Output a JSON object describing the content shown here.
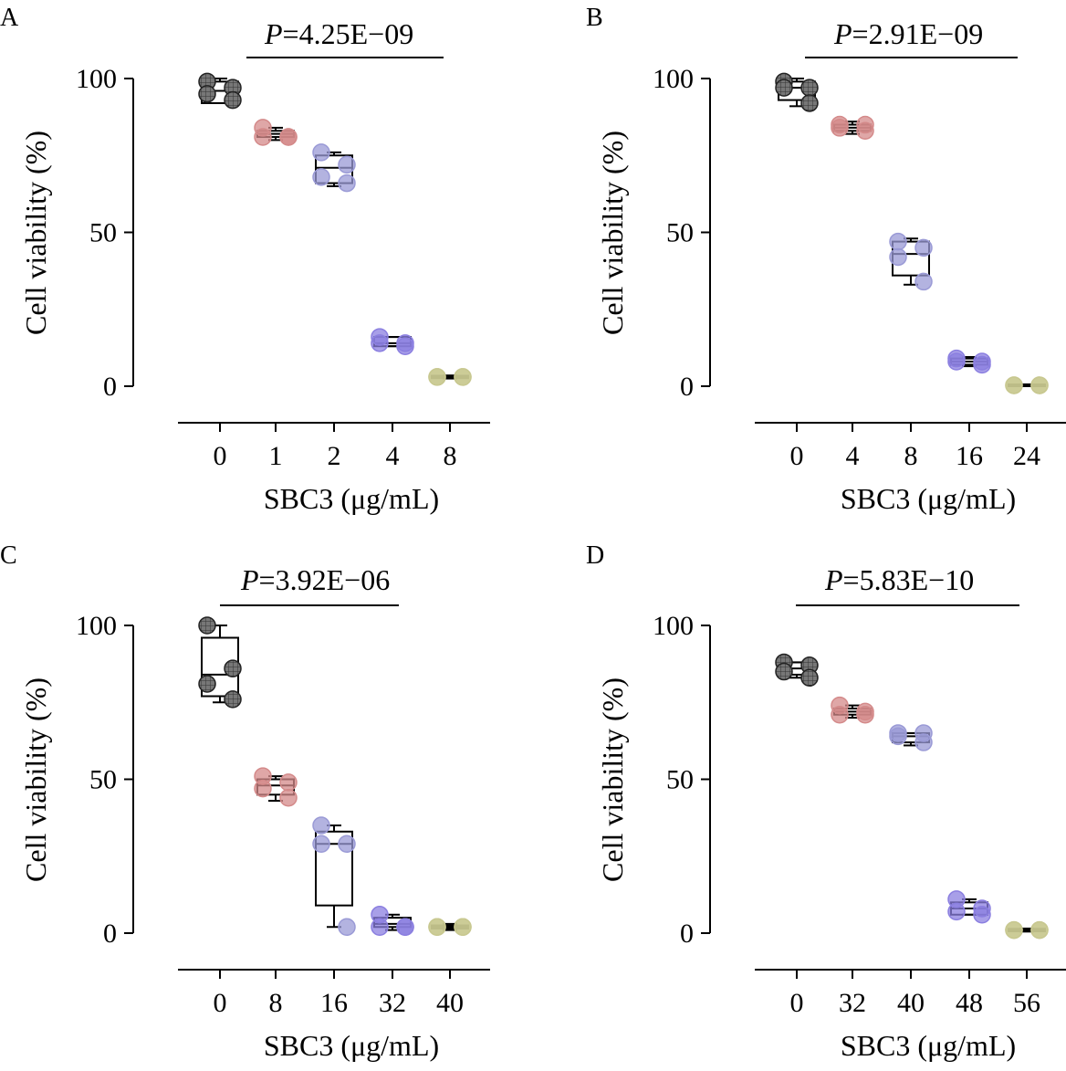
{
  "chart_data": [
    {
      "type": "box",
      "panel_label": "A",
      "pvalue": {
        "prefix": "P",
        "rest": "=4.25E−09"
      },
      "xlabel": "SBC3 (μg/mL)",
      "ylabel": "Cell viability (%)",
      "yticks": [
        "0",
        "50",
        "100"
      ],
      "ylim": [
        0,
        100
      ],
      "categories": [
        "0",
        "1",
        "2",
        "4",
        "8"
      ],
      "series": [
        {
          "values": [
            99,
            97,
            95,
            93
          ],
          "box": [
            92,
            96,
            99
          ],
          "whisker": [
            92,
            100
          ],
          "color": "#555555"
        },
        {
          "values": [
            84,
            81,
            81,
            81
          ],
          "box": [
            81,
            82,
            83
          ],
          "whisker": [
            80,
            84
          ],
          "color": "#d48a8a"
        },
        {
          "values": [
            76,
            72,
            68,
            66
          ],
          "box": [
            66,
            71,
            75
          ],
          "whisker": [
            65,
            76
          ],
          "color": "#9a9ad6"
        },
        {
          "values": [
            16,
            14,
            14,
            13
          ],
          "box": [
            13,
            14,
            16
          ],
          "whisker": [
            13,
            16
          ],
          "color": "#8b7fe0"
        },
        {
          "values": [
            3,
            3,
            3,
            3
          ],
          "box": [
            2.6,
            3,
            3.4
          ],
          "whisker": [
            2.5,
            3.5
          ],
          "color": "#c8c890"
        }
      ]
    },
    {
      "type": "box",
      "panel_label": "B",
      "pvalue": {
        "prefix": "P",
        "rest": "=2.91E−09"
      },
      "xlabel": "SBC3 (μg/mL)",
      "ylabel": "Cell viability (%)",
      "yticks": [
        "0",
        "50",
        "100"
      ],
      "ylim": [
        0,
        100
      ],
      "categories": [
        "0",
        "4",
        "8",
        "16",
        "24"
      ],
      "series": [
        {
          "values": [
            99,
            97,
            97,
            92
          ],
          "box": [
            93,
            97,
            99
          ],
          "whisker": [
            91,
            100
          ],
          "color": "#555555"
        },
        {
          "values": [
            85,
            85,
            84,
            83
          ],
          "box": [
            83,
            84,
            85
          ],
          "whisker": [
            82,
            86
          ],
          "color": "#d48a8a"
        },
        {
          "values": [
            47,
            45,
            42,
            34
          ],
          "box": [
            36,
            43,
            47
          ],
          "whisker": [
            33,
            48
          ],
          "color": "#9a9ad6"
        },
        {
          "values": [
            9,
            8,
            8,
            7
          ],
          "box": [
            7,
            8,
            9
          ],
          "whisker": [
            6.5,
            9.5
          ],
          "color": "#8b7fe0"
        },
        {
          "values": [
            0.3,
            0.3,
            0.3,
            0.3
          ],
          "box": [
            0,
            0.3,
            0.6
          ],
          "whisker": [
            0,
            0.6
          ],
          "color": "#c8c890"
        }
      ]
    },
    {
      "type": "box",
      "panel_label": "C",
      "pvalue": {
        "prefix": "P",
        "rest": "=3.92E−06"
      },
      "xlabel": "SBC3 (μg/mL)",
      "ylabel": "Cell viability (%)",
      "yticks": [
        "0",
        "50",
        "100"
      ],
      "ylim": [
        0,
        100
      ],
      "categories": [
        "0",
        "8",
        "16",
        "32",
        "40"
      ],
      "series": [
        {
          "values": [
            100,
            86,
            81,
            76
          ],
          "box": [
            77,
            84,
            96
          ],
          "whisker": [
            75,
            100
          ],
          "color": "#555555"
        },
        {
          "values": [
            51,
            49,
            47,
            44
          ],
          "box": [
            45,
            48,
            50
          ],
          "whisker": [
            43,
            51
          ],
          "color": "#d48a8a"
        },
        {
          "values": [
            35,
            29,
            29,
            2
          ],
          "box": [
            9,
            29,
            33
          ],
          "whisker": [
            2,
            35
          ],
          "color": "#9a9ad6"
        },
        {
          "values": [
            6,
            2,
            2,
            2
          ],
          "box": [
            2,
            3,
            5
          ],
          "whisker": [
            1,
            6
          ],
          "color": "#8b7fe0"
        },
        {
          "values": [
            2,
            2,
            2,
            2
          ],
          "box": [
            1.5,
            2,
            2.5
          ],
          "whisker": [
            1,
            3
          ],
          "color": "#c8c890"
        }
      ]
    },
    {
      "type": "box",
      "panel_label": "D",
      "pvalue": {
        "prefix": "P",
        "rest": "=5.83E−10"
      },
      "xlabel": "SBC3 (μg/mL)",
      "ylabel": "Cell viability (%)",
      "yticks": [
        "0",
        "50",
        "100"
      ],
      "ylim": [
        0,
        100
      ],
      "categories": [
        "0",
        "32",
        "40",
        "48",
        "56"
      ],
      "series": [
        {
          "values": [
            88,
            87,
            85,
            83
          ],
          "box": [
            84,
            86,
            88
          ],
          "whisker": [
            83,
            88
          ],
          "color": "#555555"
        },
        {
          "values": [
            74,
            72,
            71,
            71
          ],
          "box": [
            71,
            72,
            73
          ],
          "whisker": [
            70,
            74
          ],
          "color": "#d48a8a"
        },
        {
          "values": [
            65,
            65,
            64,
            62
          ],
          "box": [
            62,
            64,
            65
          ],
          "whisker": [
            61,
            65
          ],
          "color": "#9a9ad6"
        },
        {
          "values": [
            11,
            8,
            7,
            6
          ],
          "box": [
            6,
            8,
            10
          ],
          "whisker": [
            6,
            11
          ],
          "color": "#8b7fe0"
        },
        {
          "values": [
            1,
            1,
            1,
            1
          ],
          "box": [
            0.6,
            1,
            1.4
          ],
          "whisker": [
            0.5,
            1.5
          ],
          "color": "#c8c890"
        }
      ]
    }
  ]
}
